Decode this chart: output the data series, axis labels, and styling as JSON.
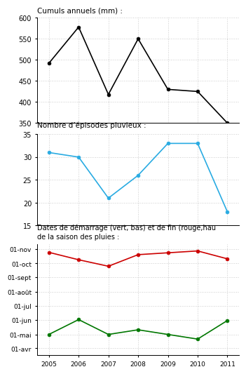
{
  "years": [
    2005,
    2006,
    2007,
    2008,
    2009,
    2010,
    2011
  ],
  "cumuls": [
    492,
    578,
    418,
    550,
    430,
    425,
    350
  ],
  "episodes": [
    31,
    30,
    21,
    26,
    33,
    33,
    18
  ],
  "title1": "Cumuls annuels (mm) :",
  "title2": "Nombre d’épisodes pluvieux :",
  "title3a": "Dates de démarrage (vert, bas) et de fin (rouge,hau",
  "title3b": "de la saison des pluies :",
  "ylim1": [
    350,
    600
  ],
  "ylim2": [
    15,
    35
  ],
  "yticks1": [
    350,
    400,
    450,
    500,
    550,
    600
  ],
  "yticks2": [
    15,
    20,
    25,
    30,
    35
  ],
  "color1": "#000000",
  "color2": "#29ABE2",
  "color_red": "#CC0000",
  "color_green": "#007700",
  "end_dates_doy": [
    298,
    282,
    268,
    293,
    297,
    301,
    284
  ],
  "start_dates_doy": [
    121,
    153,
    121,
    131,
    121,
    111,
    151
  ],
  "ytick_dates": [
    "01-avr",
    "01-mai",
    "01-jun",
    "01-jul",
    "01-août",
    "01-sept",
    "01-oct",
    "01-nov"
  ],
  "ytick_doys": [
    91,
    121,
    152,
    182,
    213,
    244,
    274,
    305
  ],
  "background_color": "#ffffff",
  "grid_color": "#cccccc"
}
